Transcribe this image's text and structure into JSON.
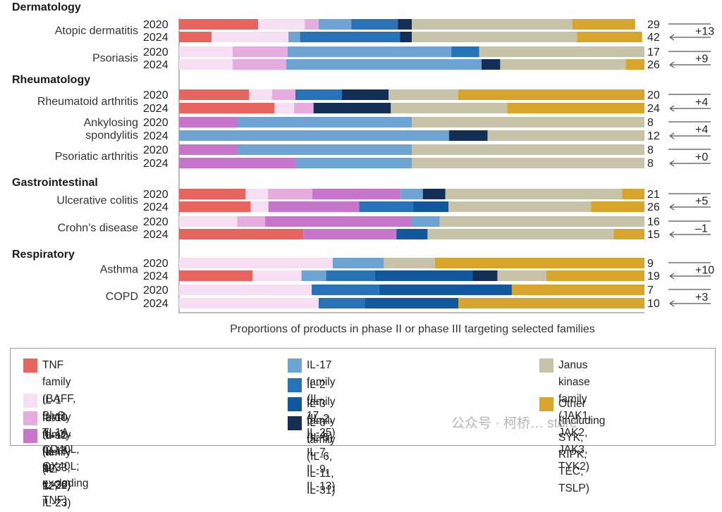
{
  "chart_data": {
    "type": "bar",
    "orientation": "horizontal",
    "stacked": true,
    "normalized": true,
    "xlabel": "Proportions of products in phase II or phase III targeting selected families",
    "xlim": [
      0,
      1
    ],
    "categories_order": [
      "TNF family",
      "IL-1 family",
      "IL-10 family",
      "IL-12 family",
      "IL-17 family",
      "IL-2 family",
      "IL-3 family",
      "IL-6 family",
      "Janus kinase family",
      "Other"
    ],
    "legend": [
      {
        "key": "TNF family",
        "label": "TNF family (BAFF, BlyS, TL1A, CD40L,\nOX40L; excluding TNF)",
        "color": "#e8645e"
      },
      {
        "key": "IL-1 family",
        "label": "IL-1 family (IL-1, IL-18, IL-33, IL-36)",
        "color": "#f7dff3"
      },
      {
        "key": "IL-10 family",
        "label": "IL-10 family (IL-10, IL-22)",
        "color": "#e6ace0"
      },
      {
        "key": "IL-12 family",
        "label": "IL-12 family (IL-12, IL-23)",
        "color": "#c875cc"
      },
      {
        "key": "IL-17 family",
        "label": "IL-17 family (IL-17, IL-25)",
        "color": "#6ea4d4"
      },
      {
        "key": "IL-2 family",
        "label": "IL-2 family (IL-2, IL-4, IL-7, IL-9, IL-13)",
        "color": "#2873b8"
      },
      {
        "key": "IL-3 family",
        "label": "IL-3 family (IL-5)",
        "color": "#11589e"
      },
      {
        "key": "IL-6 family",
        "label": "IL-6 family (IL-6, IL-11, IL-31)",
        "color": "#132f55"
      },
      {
        "key": "Janus kinase family",
        "label": "Janus kinase family\n(JAK1,  JAK2, JAK3, TYK2)",
        "color": "#c6c3a9"
      },
      {
        "key": "Other",
        "label": "Other (including SYK,\nRIPK, TEC, TSLP)",
        "color": "#d7a52c"
      }
    ],
    "groups": [
      {
        "name": "Dermatology",
        "diseases": [
          {
            "name": "Atopic dermatitis",
            "change": "+13",
            "rows": [
              {
                "year": "2020",
                "total": "29",
                "values": [
                  0.17,
                  0.1,
                  0.03,
                  0,
                  0.07,
                  0.1,
                  0,
                  0.03,
                  0.345,
                  0.135
                ]
              },
              {
                "year": "2024",
                "total": "42",
                "values": [
                  0.07,
                  0.165,
                  0,
                  0,
                  0.025,
                  0.215,
                  0,
                  0.025,
                  0.355,
                  0.14
                ]
              }
            ]
          },
          {
            "name": "Psoriasis",
            "change": "+9",
            "rows": [
              {
                "year": "2020",
                "total": "17",
                "values": [
                  0,
                  0.115,
                  0.118,
                  0,
                  0.352,
                  0.06,
                  0,
                  0,
                  0.355,
                  0
                ]
              },
              {
                "year": "2024",
                "total": "26",
                "values": [
                  0,
                  0.115,
                  0.115,
                  0,
                  0.42,
                  0,
                  0,
                  0.04,
                  0.27,
                  0.04
                ]
              }
            ]
          }
        ]
      },
      {
        "name": "Rheumatology",
        "diseases": [
          {
            "name": "Rheumatoid arthritis",
            "change": "+4",
            "rows": [
              {
                "year": "2020",
                "total": "20",
                "values": [
                  0.15,
                  0.05,
                  0.05,
                  0,
                  0,
                  0.1,
                  0,
                  0.1,
                  0.15,
                  0.4
                ]
              },
              {
                "year": "2024",
                "total": "24",
                "values": [
                  0.205,
                  0.042,
                  0.042,
                  0,
                  0,
                  0,
                  0,
                  0.166,
                  0.25,
                  0.295
                ]
              }
            ]
          },
          {
            "name": "Ankylosing\nspondylitis",
            "change": "+4",
            "rows": [
              {
                "year": "2020",
                "total": "8",
                "values": [
                  0,
                  0,
                  0,
                  0.125,
                  0.375,
                  0,
                  0,
                  0,
                  0.5,
                  0
                ]
              },
              {
                "year": "2024",
                "total": "12",
                "values": [
                  0,
                  0,
                  0,
                  0,
                  0.58,
                  0,
                  0,
                  0.083,
                  0.337,
                  0
                ]
              }
            ]
          },
          {
            "name": "Psoriatic arthritis",
            "change": "+0",
            "rows": [
              {
                "year": "2020",
                "total": "8",
                "values": [
                  0,
                  0,
                  0,
                  0.125,
                  0.375,
                  0,
                  0,
                  0,
                  0.5,
                  0
                ]
              },
              {
                "year": "2024",
                "total": "8",
                "values": [
                  0,
                  0,
                  0,
                  0.25,
                  0.25,
                  0,
                  0,
                  0,
                  0.5,
                  0
                ]
              }
            ]
          }
        ]
      },
      {
        "name": "Gastrointestinal",
        "diseases": [
          {
            "name": "Ulcerative colitis",
            "change": "+5",
            "rows": [
              {
                "year": "2020",
                "total": "21",
                "values": [
                  0.143,
                  0.048,
                  0.095,
                  0.19,
                  0.048,
                  0,
                  0,
                  0.048,
                  0.38,
                  0.048
                ]
              },
              {
                "year": "2024",
                "total": "26",
                "values": [
                  0.154,
                  0.038,
                  0,
                  0.195,
                  0,
                  0.115,
                  0.077,
                  0,
                  0.306,
                  0.115
                ]
              }
            ]
          },
          {
            "name": "Crohn’s disease",
            "change": "–1",
            "rows": [
              {
                "year": "2020",
                "total": "16",
                "values": [
                  0,
                  0.125,
                  0.06,
                  0.315,
                  0.06,
                  0,
                  0,
                  0,
                  0.44,
                  0
                ]
              },
              {
                "year": "2024",
                "total": "15",
                "values": [
                  0.267,
                  0,
                  0,
                  0.2,
                  0,
                  0,
                  0.067,
                  0,
                  0.4,
                  0.066
                ]
              }
            ]
          }
        ]
      },
      {
        "name": "Respiratory",
        "diseases": [
          {
            "name": "Asthma",
            "change": "+10",
            "rows": [
              {
                "year": "2020",
                "total": "9",
                "values": [
                  0,
                  0.33,
                  0,
                  0,
                  0.11,
                  0,
                  0,
                  0,
                  0.11,
                  0.45
                ]
              },
              {
                "year": "2024",
                "total": "19",
                "values": [
                  0.158,
                  0.105,
                  0,
                  0,
                  0.053,
                  0.105,
                  0.21,
                  0.053,
                  0.105,
                  0.211
                ]
              }
            ]
          },
          {
            "name": "COPD",
            "change": "+3",
            "rows": [
              {
                "year": "2020",
                "total": "7",
                "values": [
                  0,
                  0.285,
                  0,
                  0,
                  0,
                  0.145,
                  0.285,
                  0,
                  0,
                  0.285
                ]
              },
              {
                "year": "2024",
                "total": "10",
                "values": [
                  0,
                  0.3,
                  0,
                  0,
                  0,
                  0.1,
                  0.2,
                  0,
                  0,
                  0.4
                ]
              }
            ]
          }
        ]
      }
    ]
  },
  "watermark": "公众号 · 柯桥… store"
}
